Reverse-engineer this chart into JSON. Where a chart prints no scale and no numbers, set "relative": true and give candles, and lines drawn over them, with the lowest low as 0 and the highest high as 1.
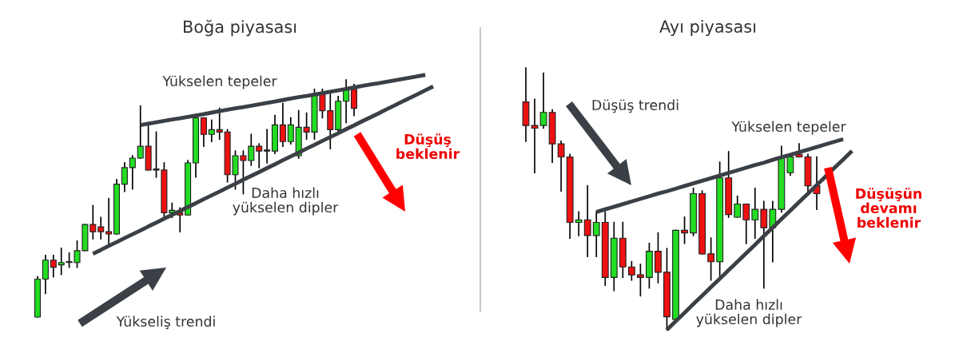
{
  "chart_data": [
    {
      "type": "candlestick",
      "title": "Boğa piyasası",
      "relative": true,
      "categories": [
        null,
        null,
        null,
        null,
        null,
        null,
        null,
        null,
        null,
        null,
        null,
        null,
        null,
        null,
        null,
        null,
        null,
        null,
        null,
        null,
        null,
        null,
        null,
        null,
        null,
        null,
        null,
        null,
        null,
        null,
        null,
        null,
        null,
        null,
        null,
        null,
        null,
        null,
        null,
        null,
        null,
        null,
        null,
        null,
        null,
        null,
        null,
        null,
        null,
        null,
        null
      ],
      "ohlc": [
        [
          0.0,
          0.17,
          0.0,
          0.16
        ],
        [
          0.16,
          0.26,
          0.1,
          0.24
        ],
        [
          0.24,
          0.26,
          0.17,
          0.21
        ],
        [
          0.22,
          0.29,
          0.18,
          0.23
        ],
        [
          0.23,
          0.27,
          0.21,
          0.23
        ],
        [
          0.23,
          0.32,
          0.21,
          0.28
        ],
        [
          0.28,
          0.39,
          0.28,
          0.39
        ],
        [
          0.39,
          0.47,
          0.33,
          0.36
        ],
        [
          0.38,
          0.42,
          0.33,
          0.36
        ],
        [
          0.36,
          0.5,
          0.3,
          0.35
        ],
        [
          0.35,
          0.58,
          0.35,
          0.56
        ],
        [
          0.56,
          0.65,
          0.53,
          0.63
        ],
        [
          0.63,
          0.68,
          0.54,
          0.67
        ],
        [
          0.67,
          0.89,
          0.67,
          0.72
        ],
        [
          0.72,
          0.82,
          0.62,
          0.62
        ],
        [
          0.62,
          0.78,
          0.59,
          0.62
        ],
        [
          0.62,
          0.65,
          0.42,
          0.44
        ],
        [
          0.44,
          0.48,
          0.42,
          0.45
        ],
        [
          0.44,
          0.46,
          0.36,
          0.43
        ],
        [
          0.43,
          0.66,
          0.43,
          0.65
        ],
        [
          0.65,
          0.84,
          0.59,
          0.84
        ],
        [
          0.84,
          0.84,
          0.72,
          0.77
        ],
        [
          0.77,
          0.83,
          0.74,
          0.79
        ],
        [
          0.79,
          0.88,
          0.75,
          0.78
        ],
        [
          0.78,
          0.79,
          0.57,
          0.6
        ],
        [
          0.6,
          0.7,
          0.54,
          0.68
        ],
        [
          0.68,
          0.7,
          0.52,
          0.66
        ],
        [
          0.66,
          0.77,
          0.64,
          0.72
        ],
        [
          0.72,
          0.73,
          0.63,
          0.7
        ],
        [
          0.7,
          0.79,
          0.65,
          0.7
        ],
        [
          0.7,
          0.85,
          0.69,
          0.81
        ],
        [
          0.81,
          0.9,
          0.72,
          0.74
        ],
        [
          0.74,
          0.84,
          0.73,
          0.81
        ],
        [
          0.68,
          0.87,
          0.67,
          0.8
        ],
        [
          0.8,
          0.86,
          0.75,
          0.78
        ],
        [
          0.78,
          0.96,
          0.75,
          0.94
        ],
        [
          0.94,
          0.96,
          0.84,
          0.87
        ],
        [
          0.87,
          0.94,
          0.71,
          0.79
        ],
        [
          0.79,
          0.93,
          0.78,
          0.91
        ],
        [
          0.91,
          1.0,
          0.82,
          0.96
        ],
        [
          0.96,
          0.98,
          0.85,
          0.88
        ],
        null,
        null,
        null,
        null,
        null,
        null,
        null,
        null,
        null,
        null
      ],
      "colors": [
        "#22dd22",
        "#22dd22",
        "#ee1111",
        "#22dd22",
        "#22dd22",
        "#22dd22",
        "#22dd22",
        "#ee1111",
        "#ee1111",
        "#ee1111",
        "#22dd22",
        "#22dd22",
        "#22dd22",
        "#22dd22",
        "#ee1111",
        "#ee1111",
        "#ee1111",
        "#22dd22",
        "#ee1111",
        "#22dd22",
        "#22dd22",
        "#ee1111",
        "#22dd22",
        "#ee1111",
        "#ee1111",
        "#22dd22",
        "#ee1111",
        "#22dd22",
        "#ee1111",
        "#ee1111",
        "#22dd22",
        "#ee1111",
        "#22dd22",
        "#22dd22",
        "#ee1111",
        "#22dd22",
        "#ee1111",
        "#ee1111",
        "#22dd22",
        "#22dd22",
        "#ee1111",
        null,
        null,
        null,
        null,
        null,
        null,
        null,
        null,
        null,
        null
      ],
      "series": [
        {
          "type": "line",
          "color": "#3a4045",
          "values": [
            null,
            null,
            null,
            null,
            null,
            null,
            null,
            null,
            null,
            null,
            null,
            null,
            null,
            0.809,
            0.815,
            0.821,
            0.827,
            0.833,
            0.838,
            0.844,
            0.85,
            0.856,
            0.862,
            0.868,
            0.874,
            0.88,
            0.885,
            0.891,
            0.897,
            0.903,
            0.909,
            0.915,
            0.921,
            0.927,
            0.932,
            0.938,
            0.944,
            0.95,
            0.956,
            0.962,
            0.968,
            0.974,
            0.98,
            0.985,
            0.991,
            0.997,
            1.003,
            1.009,
            1.015,
            1.021,
            null
          ]
        },
        {
          "type": "line",
          "color": "#3a4045",
          "values": [
            null,
            null,
            null,
            null,
            null,
            null,
            null,
            0.267,
            0.283,
            0.3,
            0.316,
            0.333,
            0.349,
            0.365,
            0.382,
            0.398,
            0.415,
            0.431,
            0.447,
            0.464,
            0.48,
            0.497,
            0.513,
            0.529,
            0.546,
            0.562,
            0.579,
            0.595,
            0.611,
            0.628,
            0.644,
            0.661,
            0.677,
            0.693,
            0.71,
            0.726,
            0.743,
            0.759,
            0.775,
            0.792,
            0.808,
            0.825,
            0.841,
            0.857,
            0.874,
            0.89,
            0.907,
            0.923,
            0.939,
            0.956,
            0.972
          ]
        }
      ],
      "annotations": [
        "Yükselen tepeler",
        "Daha hızlı\nyükselen dipler",
        "Yükseliş trendi",
        "Düşüş\nbeklenir"
      ]
    },
    {
      "type": "candlestick",
      "title": "Ayı piyasası",
      "relative": true,
      "categories": [
        null,
        null,
        null,
        null,
        null,
        null,
        null,
        null,
        null,
        null,
        null,
        null,
        null,
        null,
        null,
        null,
        null,
        null,
        null,
        null,
        null,
        null,
        null,
        null,
        null,
        null,
        null,
        null,
        null,
        null,
        null,
        null,
        null,
        null,
        null,
        null,
        null,
        null
      ],
      "ohlc": [
        [
          0.87,
          1.0,
          0.72,
          0.78
        ],
        [
          0.78,
          0.88,
          0.6,
          0.77
        ],
        [
          0.78,
          0.98,
          0.77,
          0.83
        ],
        [
          0.83,
          0.84,
          0.64,
          0.71
        ],
        [
          0.71,
          0.72,
          0.53,
          0.66
        ],
        [
          0.66,
          0.67,
          0.35,
          0.41
        ],
        [
          0.41,
          0.45,
          0.36,
          0.42
        ],
        [
          0.42,
          0.55,
          0.28,
          0.36
        ],
        [
          0.36,
          0.45,
          0.28,
          0.41
        ],
        [
          0.41,
          0.45,
          0.17,
          0.2
        ],
        [
          0.2,
          0.41,
          0.15,
          0.35
        ],
        [
          0.35,
          0.41,
          0.2,
          0.24
        ],
        [
          0.24,
          0.26,
          0.19,
          0.21
        ],
        [
          0.21,
          0.25,
          0.13,
          0.2
        ],
        [
          0.2,
          0.33,
          0.16,
          0.3
        ],
        [
          0.3,
          0.37,
          0.18,
          0.22
        ],
        [
          0.22,
          0.31,
          0.0,
          0.05
        ],
        [
          0.04,
          0.38,
          0.04,
          0.38
        ],
        [
          0.38,
          0.43,
          0.33,
          0.37
        ],
        [
          0.37,
          0.54,
          0.36,
          0.52
        ],
        [
          0.52,
          0.53,
          0.29,
          0.29
        ],
        [
          0.29,
          0.35,
          0.19,
          0.26
        ],
        [
          0.26,
          0.64,
          0.2,
          0.58
        ],
        [
          0.58,
          0.68,
          0.43,
          0.44
        ],
        [
          0.43,
          0.51,
          0.43,
          0.48
        ],
        [
          0.48,
          0.48,
          0.33,
          0.42
        ],
        [
          0.42,
          0.54,
          0.35,
          0.46
        ],
        [
          0.46,
          0.49,
          0.16,
          0.39
        ],
        [
          0.39,
          0.49,
          0.26,
          0.46
        ],
        [
          0.46,
          0.7,
          0.45,
          0.66
        ],
        [
          0.6,
          0.67,
          0.59,
          0.66
        ],
        [
          0.67,
          0.71,
          0.66,
          0.66
        ],
        [
          0.66,
          0.67,
          0.52,
          0.55
        ],
        [
          0.55,
          0.66,
          0.46,
          0.52
        ],
        null,
        null,
        null,
        null
      ],
      "colors": [
        "#ee1111",
        "#ee1111",
        "#22dd22",
        "#ee1111",
        "#ee1111",
        "#ee1111",
        "#22dd22",
        "#ee1111",
        "#22dd22",
        "#ee1111",
        "#22dd22",
        "#ee1111",
        "#ee1111",
        "#ee1111",
        "#22dd22",
        "#ee1111",
        "#ee1111",
        "#22dd22",
        "#ee1111",
        "#22dd22",
        "#ee1111",
        "#ee1111",
        "#22dd22",
        "#ee1111",
        "#22dd22",
        "#ee1111",
        "#22dd22",
        "#ee1111",
        "#22dd22",
        "#22dd22",
        "#22dd22",
        "#ee1111",
        "#ee1111",
        "#ee1111",
        null,
        null,
        null,
        null
      ],
      "series": [
        {
          "type": "line",
          "color": "#3a4045",
          "values": [
            null,
            null,
            null,
            null,
            null,
            null,
            null,
            null,
            0.45,
            0.46,
            0.47,
            0.48,
            0.49,
            0.5,
            0.51,
            0.52,
            0.529,
            0.539,
            0.549,
            0.559,
            0.569,
            0.579,
            0.589,
            0.599,
            0.609,
            0.619,
            0.629,
            0.638,
            0.649,
            0.659,
            0.668,
            0.678,
            0.688,
            0.698,
            0.708,
            0.718,
            0.728,
            null
          ]
        },
        {
          "type": "line",
          "color": "#3a4045",
          "values": [
            null,
            null,
            null,
            null,
            null,
            null,
            null,
            null,
            null,
            null,
            null,
            null,
            null,
            null,
            null,
            null,
            0.0,
            0.033,
            0.065,
            0.098,
            0.13,
            0.163,
            0.195,
            0.228,
            0.26,
            0.293,
            0.325,
            0.358,
            0.39,
            0.423,
            0.455,
            0.488,
            0.52,
            0.553,
            0.585,
            0.618,
            0.65,
            0.683
          ]
        }
      ],
      "annotations": [
        "Düşüş trendi",
        "Yükselen tepeler",
        "Daha hızlı\nyükselen dipler",
        "Düşüşün\ndevamı\nbeklenir"
      ]
    }
  ]
}
